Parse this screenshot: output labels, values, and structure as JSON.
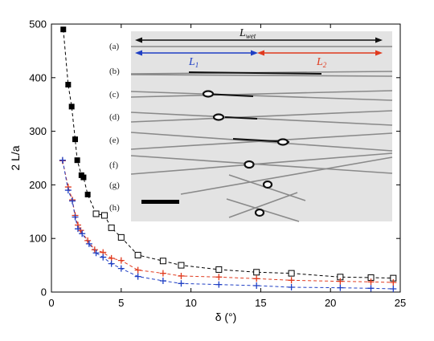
{
  "chart_data": {
    "type": "scatter",
    "xlabel": "δ (°)",
    "ylabel": "2 L/a",
    "xlim": [
      0,
      25
    ],
    "ylim": [
      0,
      500
    ],
    "xticks": [
      "0",
      "5",
      "10",
      "15",
      "20",
      "25"
    ],
    "yticks": [
      "0",
      "100",
      "200",
      "300",
      "400",
      "500"
    ],
    "grid": false,
    "series": [
      {
        "marker": "filled-square",
        "color": "#000000",
        "line": "dashed",
        "x": [
          0.85,
          1.2,
          1.45,
          1.7,
          1.85,
          2.15,
          2.3,
          2.6
        ],
        "y": [
          490,
          387,
          346,
          285,
          246,
          218,
          214,
          182
        ]
      },
      {
        "marker": "open-square",
        "color": "#000000",
        "line": "dashed",
        "x": [
          3.2,
          3.8,
          4.3,
          5.0,
          6.2,
          8.0,
          9.3,
          12.0,
          14.7,
          17.2,
          20.7,
          22.9,
          24.5
        ],
        "y": [
          146,
          143,
          120,
          102,
          69,
          58,
          50,
          42,
          37,
          35,
          28,
          27,
          26
        ]
      },
      {
        "marker": "plus",
        "color": "#e03a1e",
        "line": "dashed",
        "x": [
          0.8,
          1.2,
          1.5,
          1.7,
          1.9,
          2.1,
          2.6,
          3.1,
          3.7,
          4.3,
          5.0,
          6.2,
          8.0,
          9.3,
          12.0,
          14.7,
          17.2,
          20.7,
          22.9,
          24.5
        ],
        "y": [
          245,
          196,
          172,
          143,
          125,
          115,
          96,
          79,
          74,
          63,
          59,
          41,
          35,
          30,
          28,
          25,
          22,
          20,
          19,
          18
        ]
      },
      {
        "marker": "plus",
        "color": "#1f3fc4",
        "line": "dashed",
        "x": [
          0.8,
          1.2,
          1.5,
          1.7,
          1.9,
          2.2,
          2.7,
          3.2,
          3.7,
          4.3,
          5.0,
          6.2,
          8.0,
          9.3,
          12.0,
          14.7,
          17.2,
          20.7,
          22.9,
          24.5
        ],
        "y": [
          246,
          190,
          170,
          140,
          118,
          109,
          90,
          73,
          65,
          53,
          44,
          29,
          21,
          16,
          14,
          12,
          9,
          8,
          7,
          6
        ]
      }
    ],
    "inset": {
      "rows": [
        "(a)",
        "(b)",
        "(c)",
        "(d)",
        "(e)",
        "(f)",
        "(g)",
        "(h)"
      ],
      "labels": {
        "lwet": {
          "sym": "L",
          "sub": "wet"
        },
        "l1": {
          "sym": "L",
          "sub": "1"
        },
        "l2": {
          "sym": "L",
          "sub": "2"
        }
      }
    }
  },
  "colors": {
    "lwet_arrow": "#111111",
    "l1_arrow": "#1f3fc4",
    "l2_arrow": "#e03a1e",
    "inset_bg": "#e3e3e3"
  }
}
